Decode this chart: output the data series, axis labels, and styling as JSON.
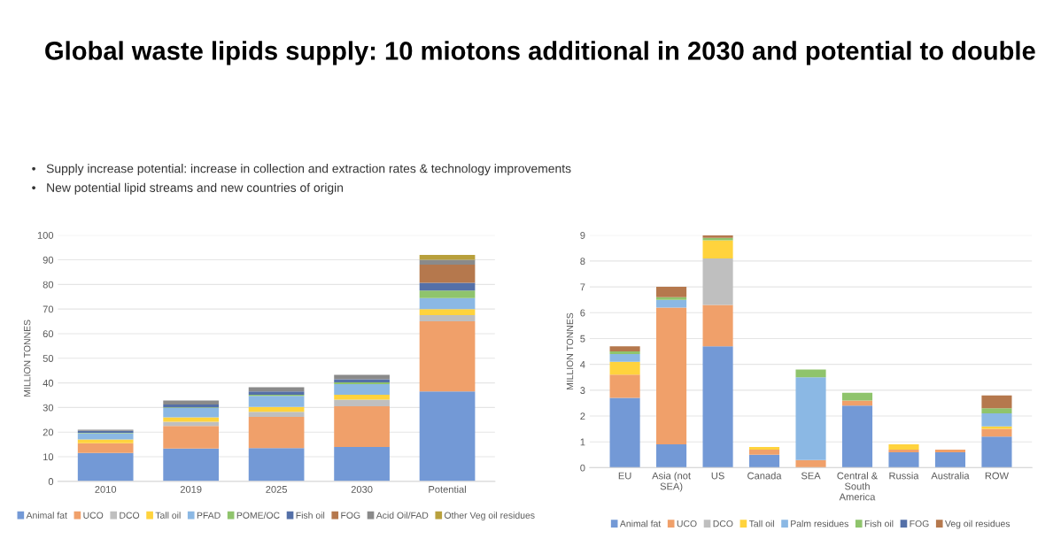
{
  "chart_data": [
    {
      "type": "bar",
      "stacked": true,
      "title": "Global waste lipids supply: 10 miotons additional in 2030 and potential to double",
      "annotations": [
        "•   Supply increase potential: increase in collection and extraction rates & technology improvements",
        "•   New potential lipid streams and new countries of origin"
      ],
      "ylabel": "MILLION TONNES",
      "categories": [
        "2010",
        "2019",
        "2025",
        "2030",
        "Potential"
      ],
      "ylim": [
        0,
        100
      ],
      "yticks": [
        0,
        10,
        20,
        30,
        40,
        50,
        60,
        70,
        80,
        90,
        100
      ],
      "grid": "y",
      "legend": "bottom",
      "series": [
        {
          "name": "Animal fat",
          "color": "#7399d6",
          "values": [
            11.5,
            13.3,
            13.5,
            14,
            36.5
          ]
        },
        {
          "name": "UCO",
          "color": "#f0a06a",
          "values": [
            4,
            9.2,
            12.7,
            16.5,
            28.5
          ]
        },
        {
          "name": "DCO",
          "color": "#bfbfbf",
          "values": [
            0,
            1.7,
            2.1,
            2.7,
            2.5
          ]
        },
        {
          "name": "Tall oil",
          "color": "#ffd33d",
          "values": [
            1.5,
            1.8,
            1.9,
            2,
            2.5
          ]
        },
        {
          "name": "PFAD",
          "color": "#8bb8e4",
          "values": [
            2.5,
            3.8,
            4.5,
            4.3,
            4.5
          ]
        },
        {
          "name": "POME/OC",
          "color": "#8fc46c",
          "values": [
            0.2,
            0.3,
            0.5,
            0.7,
            3
          ]
        },
        {
          "name": "Fish oil",
          "color": "#5470a8",
          "values": [
            0.8,
            1.1,
            1.3,
            1.3,
            3.2
          ]
        },
        {
          "name": "FOG",
          "color": "#b5784d",
          "values": [
            0,
            0,
            0,
            0,
            7.3
          ]
        },
        {
          "name": "Acid Oil/FAD",
          "color": "#8a8a8a",
          "values": [
            0.5,
            1.6,
            1.7,
            1.8,
            2
          ]
        },
        {
          "name": "Other Veg oil residues",
          "color": "#b8a03c",
          "values": [
            0,
            0,
            0,
            0,
            2
          ]
        }
      ]
    },
    {
      "type": "bar",
      "stacked": true,
      "ylabel": "MILLION TONNES",
      "categories": [
        "EU",
        "Asia (not\nSEA)",
        "US",
        "Canada",
        "SEA",
        "Central &\nSouth\nAmerica",
        "Russia",
        "Australia",
        "ROW"
      ],
      "ylim": [
        0,
        9
      ],
      "yticks": [
        0,
        1,
        2,
        3,
        4,
        5,
        6,
        7,
        8,
        9
      ],
      "grid": "y",
      "legend": "bottom",
      "series": [
        {
          "name": "Animal fat",
          "color": "#7399d6",
          "values": [
            2.7,
            0.9,
            4.7,
            0.5,
            0,
            2.4,
            0.6,
            0.6,
            1.2
          ]
        },
        {
          "name": "UCO",
          "color": "#f0a06a",
          "values": [
            0.9,
            5.3,
            1.6,
            0.2,
            0.3,
            0.2,
            0.1,
            0.1,
            0.3
          ]
        },
        {
          "name": "DCO",
          "color": "#bfbfbf",
          "values": [
            0,
            0,
            1.8,
            0,
            0,
            0,
            0,
            0,
            0
          ]
        },
        {
          "name": "Tall oil",
          "color": "#ffd33d",
          "values": [
            0.5,
            0,
            0.7,
            0.1,
            0,
            0,
            0.2,
            0,
            0.1
          ]
        },
        {
          "name": "Palm residues",
          "color": "#8bb8e4",
          "values": [
            0.3,
            0.3,
            0,
            0,
            3.2,
            0,
            0,
            0,
            0.5
          ]
        },
        {
          "name": "Fish oil",
          "color": "#8fc46c",
          "values": [
            0.1,
            0.1,
            0.1,
            0,
            0.3,
            0.3,
            0,
            0,
            0.2
          ]
        },
        {
          "name": "FOG",
          "color": "#5470a8",
          "values": [
            0,
            0,
            0,
            0,
            0,
            0,
            0,
            0,
            0
          ]
        },
        {
          "name": "Veg oil residues",
          "color": "#b5784d",
          "values": [
            0.2,
            0.4,
            0.1,
            0,
            0,
            0,
            0,
            0,
            0.5
          ]
        }
      ]
    }
  ]
}
